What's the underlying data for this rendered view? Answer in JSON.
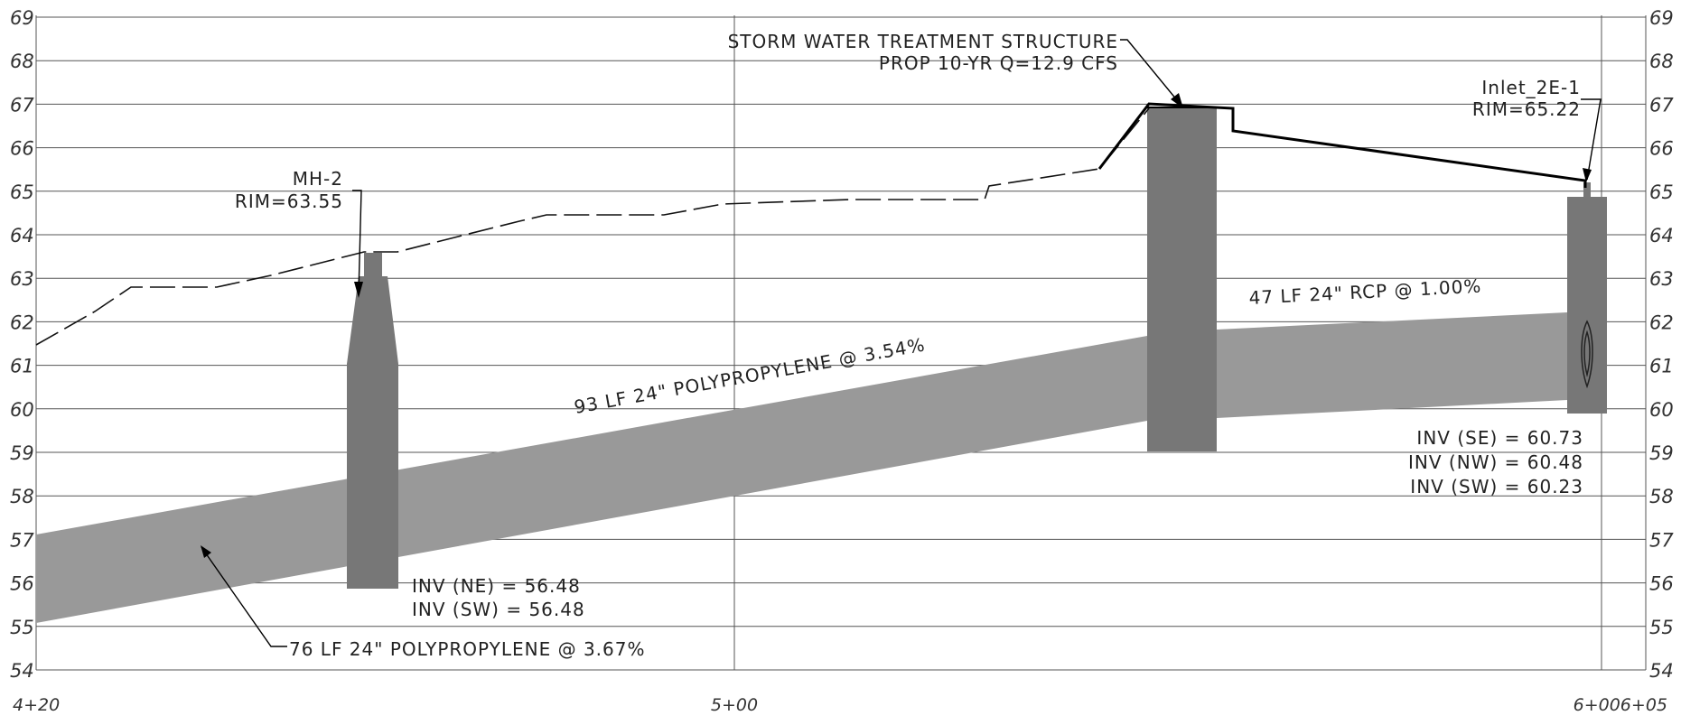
{
  "profile": {
    "elevation_axis": {
      "min": 54,
      "max": 69,
      "step": 1
    },
    "station_labels": [
      {
        "text": "4+20",
        "station": 420
      },
      {
        "text": "5+00",
        "station": 500
      },
      {
        "text": "6+006+05",
        "station": 605
      }
    ],
    "structures": [
      {
        "id": "mh2",
        "title": "MH-2",
        "rim_label": "RIM=63.55",
        "inverts": [
          "INV (NE) = 56.48",
          "INV (SW) = 56.48"
        ]
      },
      {
        "id": "swts",
        "title": "STORM WATER TREATMENT STRUCTURE",
        "subtitle": "PROP 10-YR Q=12.9 CFS"
      },
      {
        "id": "inlet",
        "title": "Inlet_2E-1",
        "rim_label": "RIM=65.22",
        "inverts": [
          "INV (SE) = 60.73",
          "INV (NW) = 60.48",
          "INV (SW) = 60.23"
        ]
      }
    ],
    "pipes": [
      {
        "label": "76 LF 24\" POLYPROPYLENE @ 3.67%"
      },
      {
        "label": "93 LF 24\" POLYPROPYLENE @ 3.54%"
      },
      {
        "label": "47 LF 24\" RCP @ 1.00%"
      }
    ],
    "colors": {
      "pipe": "#999999",
      "structure": "#777777",
      "grid": "#555555",
      "ground": "#000000"
    }
  }
}
